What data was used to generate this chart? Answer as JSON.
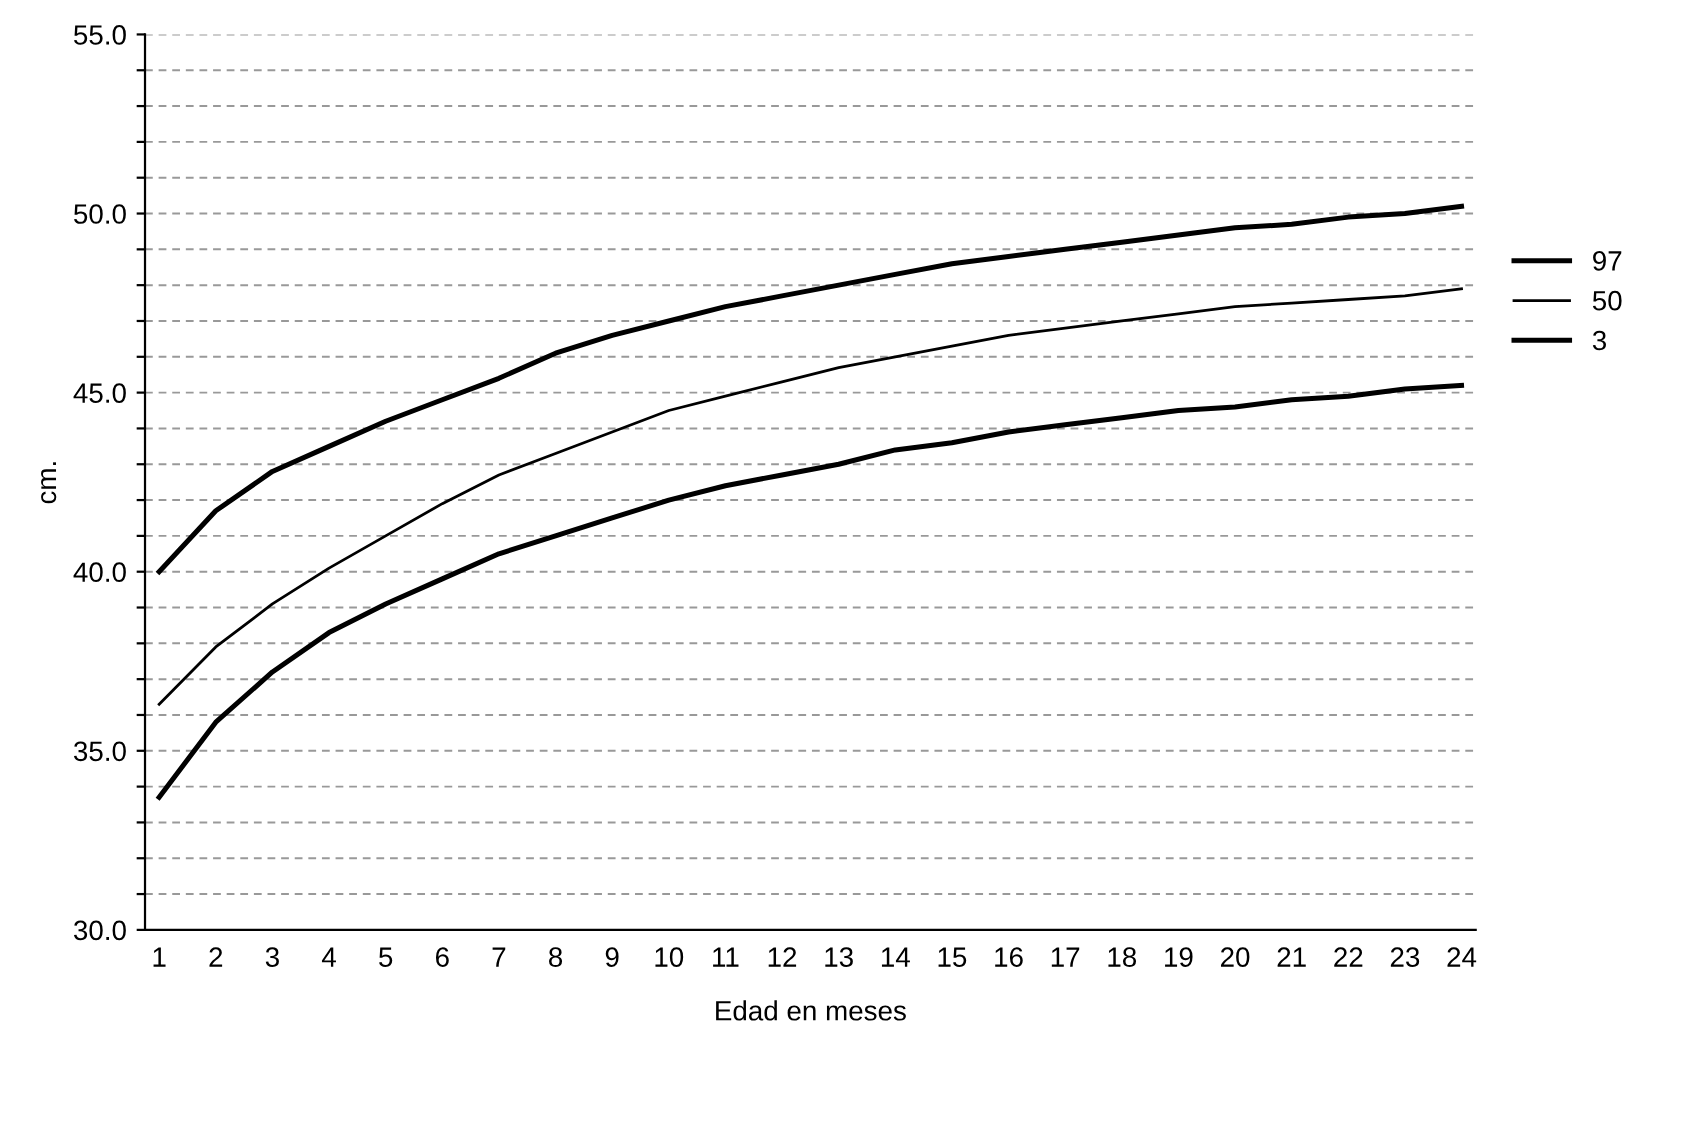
{
  "chart_data": {
    "type": "line",
    "xlabel": "Edad en meses",
    "ylabel": "cm.",
    "categories": [
      "1",
      "2",
      "3",
      "4",
      "5",
      "6",
      "7",
      "8",
      "9",
      "10",
      "11",
      "12",
      "13",
      "14",
      "15",
      "16",
      "17",
      "18",
      "19",
      "20",
      "21",
      "22",
      "23",
      "24"
    ],
    "series": [
      {
        "name": "97",
        "color": "#000000",
        "values": [
          40.0,
          41.7,
          42.8,
          43.5,
          44.2,
          44.8,
          45.4,
          46.1,
          46.6,
          47.0,
          47.4,
          47.7,
          48.0,
          48.3,
          48.6,
          48.8,
          49.0,
          49.2,
          49.4,
          49.6,
          49.7,
          49.9,
          50.0,
          50.2
        ]
      },
      {
        "name": "50",
        "color": "#000000",
        "values": [
          36.3,
          37.9,
          39.1,
          40.1,
          41.0,
          41.9,
          42.7,
          43.3,
          43.9,
          44.5,
          44.9,
          45.3,
          45.7,
          46.0,
          46.3,
          46.6,
          46.8,
          47.0,
          47.2,
          47.4,
          47.5,
          47.6,
          47.7,
          47.9
        ]
      },
      {
        "name": "3",
        "color": "#000000",
        "values": [
          33.7,
          35.8,
          37.2,
          38.3,
          39.1,
          39.8,
          40.5,
          41.0,
          41.5,
          42.0,
          42.4,
          42.7,
          43.0,
          43.4,
          43.6,
          43.9,
          44.1,
          44.3,
          44.5,
          44.6,
          44.8,
          44.9,
          45.1,
          45.2
        ]
      }
    ],
    "ylim": [
      30,
      55
    ],
    "yticks": [
      {
        "value": 30,
        "label": "30.0"
      },
      {
        "value": 31,
        "label": null
      },
      {
        "value": 32,
        "label": null
      },
      {
        "value": 33,
        "label": null
      },
      {
        "value": 34,
        "label": null
      },
      {
        "value": 35,
        "label": "35.0"
      },
      {
        "value": 36,
        "label": null
      },
      {
        "value": 37,
        "label": null
      },
      {
        "value": 38,
        "label": null
      },
      {
        "value": 39,
        "label": null
      },
      {
        "value": 40,
        "label": "40.0"
      },
      {
        "value": 41,
        "label": null
      },
      {
        "value": 42,
        "label": null
      },
      {
        "value": 43,
        "label": null
      },
      {
        "value": 44,
        "label": null
      },
      {
        "value": 45,
        "label": "45.0"
      },
      {
        "value": 46,
        "label": null
      },
      {
        "value": 47,
        "label": null
      },
      {
        "value": 48,
        "label": null
      },
      {
        "value": 49,
        "label": null
      },
      {
        "value": 50,
        "label": "50.0"
      },
      {
        "value": 51,
        "label": null
      },
      {
        "value": 52,
        "label": null
      },
      {
        "value": 53,
        "label": null
      },
      {
        "value": 54,
        "label": null
      },
      {
        "value": 55,
        "label": "55.0"
      }
    ],
    "grid": "y",
    "legend": "right",
    "marker": "none",
    "line_style": "solid"
  }
}
